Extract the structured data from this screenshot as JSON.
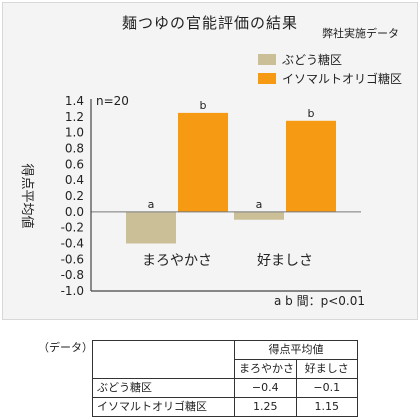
{
  "chart_data": {
    "type": "bar",
    "title": "麺つゆの官能評価の結果",
    "source": "弊社実施データ",
    "ylabel": "得点平均値",
    "n_label": "n=20",
    "footnote": "a b 間：p<0.01",
    "ylim": [
      -1.0,
      1.4
    ],
    "yticks": [
      "1.4",
      "1.2",
      "1.0",
      "0.8",
      "0.6",
      "0.4",
      "0.2",
      "0.0",
      "-0.2",
      "-0.4",
      "-0.6",
      "-0.8",
      "-1.0"
    ],
    "ytick_values": [
      1.4,
      1.2,
      1.0,
      0.8,
      0.6,
      0.4,
      0.2,
      0.0,
      -0.2,
      -0.4,
      -0.6,
      -0.8,
      -1.0
    ],
    "categories": [
      "まろやかさ",
      "好ましさ"
    ],
    "series": [
      {
        "name": "ぶどう糖区",
        "values": [
          -0.4,
          -0.1
        ],
        "labels": [
          "a",
          "a"
        ],
        "color": "#cbbf98"
      },
      {
        "name": "イソマルトオリゴ糖区",
        "values": [
          1.25,
          1.15
        ],
        "labels": [
          "b",
          "b"
        ],
        "color": "#f59a12"
      }
    ],
    "legend_position": "top-right"
  },
  "table": {
    "label": "（データ）",
    "header_group": "得点平均値",
    "columns": [
      "まろやかさ",
      "好ましさ"
    ],
    "rows": [
      {
        "name": "ぶどう糖区",
        "values": [
          "−0.4",
          "−0.1"
        ]
      },
      {
        "name": "イソマルトオリゴ糖区",
        "values": [
          "1.25",
          "1.15"
        ]
      }
    ]
  }
}
